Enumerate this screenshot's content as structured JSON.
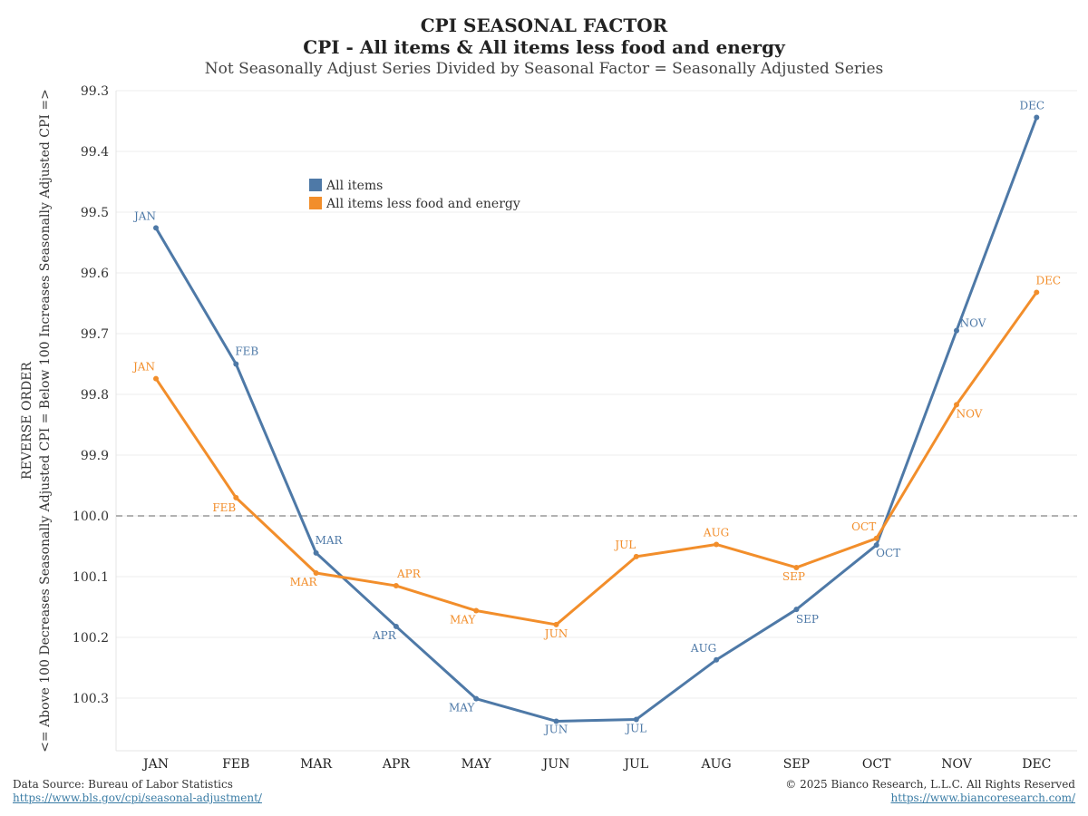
{
  "header": {
    "title": "CPI SEASONAL FACTOR",
    "subtitle": "CPI - All items & All items less food and energy",
    "note": "Not Seasonally Adjust Series Divided by Seasonal Factor = Seasonally Adjusted Series"
  },
  "footer": {
    "source": "Data Source: Bureau of Labor Statistics",
    "source_url": "https://www.bls.gov/cpi/seasonal-adjustment/",
    "copyright": "© 2025 Bianco Research, L.L.C. All Rights Reserved",
    "site_url": "https://www.biancoresearch.com/"
  },
  "colors": {
    "all_items": "#4e79a7",
    "core": "#f28e2b",
    "reference_line": "#999999"
  },
  "chart_data": {
    "type": "line",
    "title": "CPI SEASONAL FACTOR",
    "ylabel_lines": [
      "REVERSE ORDER",
      "<= Above 100 Decreases Seasonally Adjusted CPI = Below 100 Increases Seasonally Adjusted CPI =>"
    ],
    "y_reversed": true,
    "ylim": [
      99.3,
      100.38
    ],
    "yticks": [
      "99.3",
      "99.4",
      "99.5",
      "99.6",
      "99.7",
      "99.8",
      "99.9",
      "100.0",
      "100.1",
      "100.2",
      "100.3"
    ],
    "reference_line": 100.0,
    "categories": [
      "JAN",
      "FEB",
      "MAR",
      "APR",
      "MAY",
      "JUN",
      "JUL",
      "AUG",
      "SEP",
      "OCT",
      "NOV",
      "DEC"
    ],
    "legend_position": "top-left",
    "series": [
      {
        "name": "All items",
        "color": "#4e79a7",
        "values": [
          99.526,
          99.75,
          100.061,
          100.182,
          100.301,
          100.338,
          100.335,
          100.237,
          100.154,
          100.048,
          99.695,
          99.344
        ]
      },
      {
        "name": "All items less food and energy",
        "color": "#f28e2b",
        "values": [
          99.774,
          99.97,
          100.094,
          100.115,
          100.156,
          100.179,
          100.067,
          100.047,
          100.085,
          100.037,
          99.817,
          99.632
        ]
      }
    ]
  }
}
